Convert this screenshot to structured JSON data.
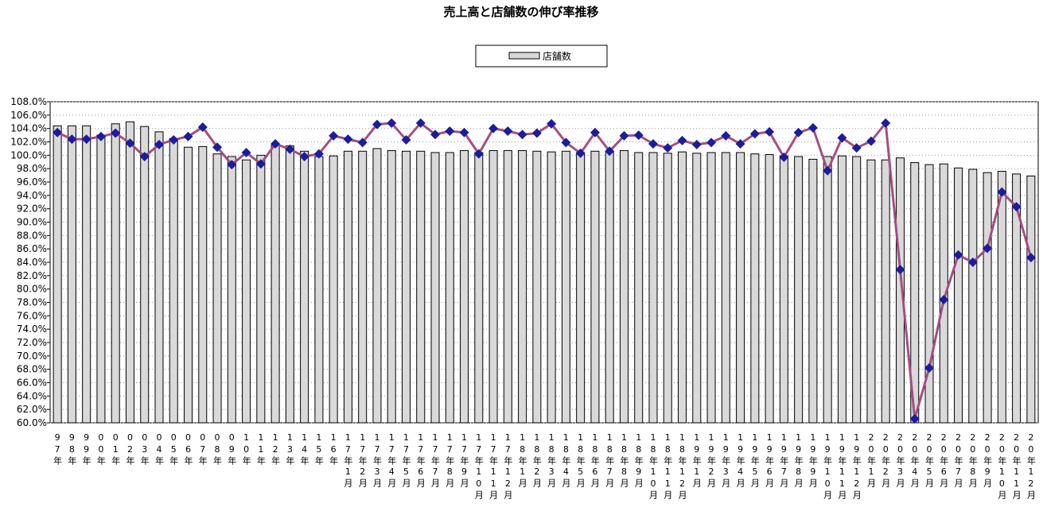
{
  "chart_data": {
    "type": "bar",
    "title": "売上高と店舗数の伸び率推移",
    "categories": [
      "97年",
      "98年",
      "99年",
      "00年",
      "01年",
      "02年",
      "03年",
      "04年",
      "05年",
      "06年",
      "07年",
      "08年",
      "09年",
      "10年",
      "11年",
      "12年",
      "13年",
      "14年",
      "15年",
      "16年",
      "17年1月",
      "17年2月",
      "17年3月",
      "17年4月",
      "17年5月",
      "17年6月",
      "17年7月",
      "17年8月",
      "17年9月",
      "17年10月",
      "17年11月",
      "17年12月",
      "18年1月",
      "18年2月",
      "18年3月",
      "18年4月",
      "18年5月",
      "18年6月",
      "18年7月",
      "18年8月",
      "18年9月",
      "18年10月",
      "18年11月",
      "18年12月",
      "19年1月",
      "19年2月",
      "19年3月",
      "19年4月",
      "19年5月",
      "19年6月",
      "19年7月",
      "19年8月",
      "19年9月",
      "19年10月",
      "19年11月",
      "19年12月",
      "20年1月",
      "20年2月",
      "20年3月",
      "20年4月",
      "20年5月",
      "20年6月",
      "20年7月",
      "20年8月",
      "20年9月",
      "20年10月",
      "20年11月",
      "20年12月"
    ],
    "series": [
      {
        "name": "店舗数",
        "type": "bar",
        "color": "#d9d9d9",
        "values": [
          104.4,
          104.4,
          104.4,
          103.0,
          104.7,
          105.0,
          104.3,
          103.5,
          102.5,
          101.2,
          101.3,
          100.2,
          99.8,
          99.3,
          100.0,
          101.5,
          101.4,
          100.6,
          99.8,
          99.9,
          100.6,
          100.6,
          101.0,
          100.7,
          100.6,
          100.6,
          100.4,
          100.4,
          100.7,
          100.4,
          100.7,
          100.7,
          100.7,
          100.6,
          100.5,
          100.6,
          100.4,
          100.6,
          100.5,
          100.7,
          100.4,
          100.4,
          100.3,
          100.5,
          100.3,
          100.4,
          100.4,
          100.4,
          100.2,
          100.1,
          99.9,
          99.8,
          99.4,
          99.8,
          99.9,
          99.8,
          99.3,
          99.3,
          99.6,
          98.9,
          98.6,
          98.7,
          98.1,
          97.9,
          97.4,
          97.6,
          97.2,
          96.9
        ]
      },
      {
        "type": "line",
        "color": "#a34f80",
        "marker_color": "#1c1c9c",
        "values": [
          103.4,
          102.4,
          102.4,
          102.8,
          103.3,
          101.8,
          99.8,
          101.6,
          102.3,
          102.8,
          104.2,
          101.2,
          98.6,
          100.4,
          98.7,
          101.7,
          100.9,
          99.8,
          100.2,
          102.9,
          102.4,
          101.9,
          104.6,
          104.8,
          102.3,
          104.8,
          103.1,
          103.6,
          103.4,
          100.2,
          104.0,
          103.6,
          103.1,
          103.3,
          104.7,
          101.9,
          100.3,
          103.4,
          100.6,
          102.9,
          103.0,
          101.7,
          101.1,
          102.2,
          101.6,
          101.9,
          102.9,
          101.7,
          103.2,
          103.5,
          99.7,
          103.4,
          104.1,
          97.7,
          102.6,
          101.1,
          102.1,
          104.8,
          82.9,
          60.6,
          68.2,
          78.4,
          85.1,
          84.0,
          86.1,
          94.5,
          92.3,
          84.7
        ]
      }
    ],
    "ylim": [
      60,
      108
    ],
    "yticks": [
      {
        "value": 60,
        "label": "60.0%"
      },
      {
        "value": 62,
        "label": "62.0%"
      },
      {
        "value": 64,
        "label": "64.0%"
      },
      {
        "value": 66,
        "label": "66.0%"
      },
      {
        "value": 68,
        "label": "68.0%"
      },
      {
        "value": 70,
        "label": "70.0%"
      },
      {
        "value": 72,
        "label": "72.0%"
      },
      {
        "value": 74,
        "label": "74.0%"
      },
      {
        "value": 76,
        "label": "76.0%"
      },
      {
        "value": 78,
        "label": "78.0%"
      },
      {
        "value": 80,
        "label": "80.0%"
      },
      {
        "value": 82,
        "label": "82.0%"
      },
      {
        "value": 84,
        "label": "84.0%"
      },
      {
        "value": 86,
        "label": "86.0%"
      },
      {
        "value": 88,
        "label": "88.0%"
      },
      {
        "value": 90,
        "label": "90.0%"
      },
      {
        "value": 92,
        "label": "92.0%"
      },
      {
        "value": 94,
        "label": "94.0%"
      },
      {
        "value": 96,
        "label": "96.0%"
      },
      {
        "value": 98,
        "label": "98.0%"
      },
      {
        "value": 100,
        "label": "100.0%"
      },
      {
        "value": 102,
        "label": "102.0%"
      },
      {
        "value": 104,
        "label": "104.0%"
      },
      {
        "value": 106,
        "label": "106.0%"
      },
      {
        "value": 108,
        "label": "108.0%"
      }
    ],
    "grid": true
  }
}
